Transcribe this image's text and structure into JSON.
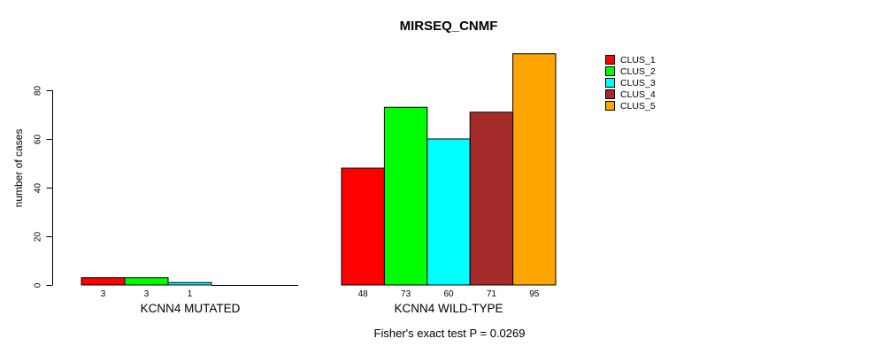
{
  "title": "MIRSEQ_CNMF",
  "y_axis": {
    "label": "number of cases",
    "ticks": [
      0,
      20,
      40,
      60,
      80
    ]
  },
  "caption": "Fisher's exact test P = 0.0269",
  "chart_data": {
    "type": "bar",
    "title": "MIRSEQ_CNMF",
    "xlabel": "",
    "ylabel": "number of cases",
    "ylim": [
      0,
      97
    ],
    "yticks": [
      0,
      20,
      40,
      60,
      80
    ],
    "grid": false,
    "legend_position": "top-right-inside",
    "categories": [
      "KCNN4 MUTATED",
      "KCNN4 WILD-TYPE"
    ],
    "series": [
      {
        "name": "CLUS_1",
        "color": "#ff0000",
        "values": [
          3,
          48
        ]
      },
      {
        "name": "CLUS_2",
        "color": "#00ff00",
        "values": [
          3,
          73
        ]
      },
      {
        "name": "CLUS_3",
        "color": "#00ffff",
        "values": [
          1,
          60
        ]
      },
      {
        "name": "CLUS_4",
        "color": "#a52a2a",
        "values": [
          0,
          71
        ]
      },
      {
        "name": "CLUS_5",
        "color": "#ffa500",
        "values": [
          0,
          95
        ]
      }
    ],
    "bar_value_labels": [
      [
        "3",
        "3",
        "1",
        "",
        ""
      ],
      [
        "48",
        "73",
        "60",
        "71",
        "95"
      ]
    ],
    "annotation": "Fisher's exact test P = 0.0269"
  }
}
